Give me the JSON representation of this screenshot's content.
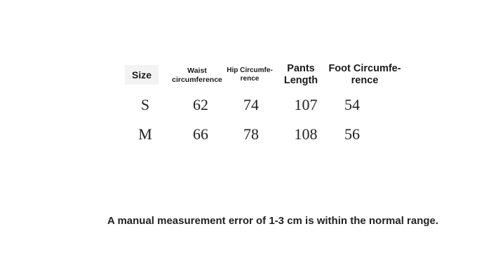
{
  "table": {
    "headers": [
      "Size",
      "Waist circumference",
      "Hip Circumfe- rence",
      "Pants Length",
      "Foot Circumfe- rence"
    ],
    "header_lines": [
      [
        "Size"
      ],
      [
        "Waist",
        "circumference"
      ],
      [
        "Hip Circumfe-",
        "rence"
      ],
      [
        "Pants",
        "Length"
      ],
      [
        "Foot Circumfe-",
        "rence"
      ]
    ],
    "rows": [
      [
        "S",
        "62",
        "74",
        "107",
        "54"
      ],
      [
        "M",
        "66",
        "78",
        "108",
        "56"
      ]
    ]
  },
  "note": "A manual measurement error of 1-3 cm is within the normal range."
}
